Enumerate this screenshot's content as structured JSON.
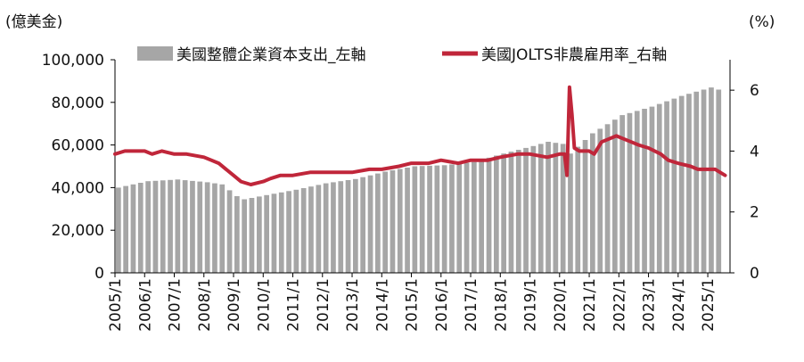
{
  "chart_data": {
    "type": "bar+line",
    "left_unit": "(億美金)",
    "right_unit": "(%)",
    "legend": {
      "position": "top",
      "items": [
        "美國整體企業資本支出_左軸",
        "美國JOLTS非農雇用率_右軸"
      ]
    },
    "colors": {
      "bar": "#a6a6a6",
      "line": "#c0263a",
      "axis": "#000000"
    },
    "x_ticks": [
      "2005/1",
      "2006/1",
      "2007/1",
      "2008/1",
      "2009/1",
      "2010/1",
      "2011/1",
      "2012/1",
      "2013/1",
      "2014/1",
      "2015/1",
      "2016/1",
      "2017/1",
      "2018/1",
      "2019/1",
      "2020/1",
      "2021/1",
      "2022/1",
      "2023/1",
      "2024/1",
      "2025/1"
    ],
    "y_left": {
      "range": [
        0,
        100000
      ],
      "ticks": [
        "0",
        "20,000",
        "40,000",
        "60,000",
        "80,000",
        "100,000"
      ]
    },
    "y_right": {
      "range": [
        0,
        7
      ],
      "ticks": [
        "0",
        "2",
        "4",
        "6"
      ]
    },
    "grid": false,
    "series": [
      {
        "name": "美國整體企業資本支出_左軸",
        "kind": "bar",
        "axis": "left",
        "anchors": [
          [
            "2005/1",
            40000
          ],
          [
            "2006/1",
            43000
          ],
          [
            "2007/1",
            43800
          ],
          [
            "2008/1",
            42500
          ],
          [
            "2008/7",
            41500
          ],
          [
            "2009/1",
            36000
          ],
          [
            "2009/4",
            34500
          ],
          [
            "2010/1",
            36500
          ],
          [
            "2011/1",
            39000
          ],
          [
            "2012/1",
            42000
          ],
          [
            "2013/1",
            44000
          ],
          [
            "2014/1",
            47500
          ],
          [
            "2015/1",
            50000
          ],
          [
            "2016/1",
            50500
          ],
          [
            "2017/1",
            52000
          ],
          [
            "2018/1",
            56000
          ],
          [
            "2019/1",
            59500
          ],
          [
            "2019/7",
            61500
          ],
          [
            "2020/1",
            60500
          ],
          [
            "2020/4",
            56000
          ],
          [
            "2021/1",
            65500
          ],
          [
            "2022/1",
            74000
          ],
          [
            "2023/1",
            78000
          ],
          [
            "2024/1",
            83000
          ],
          [
            "2025/1",
            87000
          ],
          [
            "2025/4",
            86000
          ]
        ]
      },
      {
        "name": "美國JOLTS非農雇用率_右軸",
        "kind": "line",
        "axis": "right",
        "points": [
          [
            "2005/1",
            3.9
          ],
          [
            "2005/5",
            4.0
          ],
          [
            "2005/9",
            4.0
          ],
          [
            "2006/1",
            4.0
          ],
          [
            "2006/4",
            3.9
          ],
          [
            "2006/8",
            4.0
          ],
          [
            "2007/1",
            3.9
          ],
          [
            "2007/6",
            3.9
          ],
          [
            "2008/1",
            3.8
          ],
          [
            "2008/4",
            3.7
          ],
          [
            "2008/7",
            3.6
          ],
          [
            "2008/10",
            3.4
          ],
          [
            "2009/1",
            3.2
          ],
          [
            "2009/4",
            3.0
          ],
          [
            "2009/8",
            2.9
          ],
          [
            "2010/1",
            3.0
          ],
          [
            "2010/4",
            3.1
          ],
          [
            "2010/8",
            3.2
          ],
          [
            "2011/1",
            3.2
          ],
          [
            "2011/8",
            3.3
          ],
          [
            "2012/1",
            3.3
          ],
          [
            "2012/8",
            3.3
          ],
          [
            "2013/1",
            3.3
          ],
          [
            "2013/8",
            3.4
          ],
          [
            "2014/1",
            3.4
          ],
          [
            "2014/8",
            3.5
          ],
          [
            "2015/1",
            3.6
          ],
          [
            "2015/8",
            3.6
          ],
          [
            "2016/1",
            3.7
          ],
          [
            "2016/8",
            3.6
          ],
          [
            "2017/1",
            3.7
          ],
          [
            "2017/8",
            3.7
          ],
          [
            "2018/1",
            3.8
          ],
          [
            "2018/8",
            3.9
          ],
          [
            "2019/1",
            3.9
          ],
          [
            "2019/8",
            3.8
          ],
          [
            "2020/1",
            3.9
          ],
          [
            "2020/3",
            3.9
          ],
          [
            "2020/4",
            3.2
          ],
          [
            "2020/5",
            6.1
          ],
          [
            "2020/6",
            5.2
          ],
          [
            "2020/7",
            4.1
          ],
          [
            "2020/9",
            4.0
          ],
          [
            "2021/1",
            4.0
          ],
          [
            "2021/3",
            3.9
          ],
          [
            "2021/6",
            4.3
          ],
          [
            "2021/9",
            4.4
          ],
          [
            "2021/12",
            4.5
          ],
          [
            "2022/3",
            4.4
          ],
          [
            "2022/6",
            4.3
          ],
          [
            "2022/9",
            4.2
          ],
          [
            "2023/1",
            4.1
          ],
          [
            "2023/6",
            3.9
          ],
          [
            "2023/9",
            3.7
          ],
          [
            "2024/1",
            3.6
          ],
          [
            "2024/6",
            3.5
          ],
          [
            "2024/9",
            3.4
          ],
          [
            "2025/1",
            3.4
          ],
          [
            "2025/4",
            3.4
          ],
          [
            "2025/6",
            3.3
          ],
          [
            "2025/8",
            3.2
          ]
        ]
      }
    ]
  }
}
